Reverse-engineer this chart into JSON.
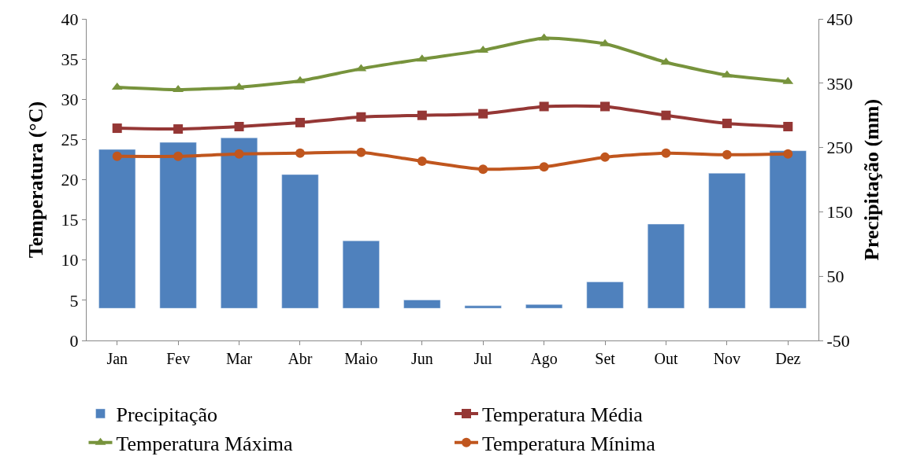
{
  "chart_data": {
    "type": "bar",
    "categories": [
      "Jan",
      "Fev",
      "Mar",
      "Abr",
      "Maio",
      "Jun",
      "Jul",
      "Ago",
      "Set",
      "Out",
      "Nov",
      "Dez"
    ],
    "ylabel": "Temperatura (°C)",
    "y2label": "Precipitação (mm)",
    "ylim": [
      0,
      40
    ],
    "yticks": [
      0,
      5,
      10,
      15,
      20,
      25,
      30,
      35,
      40
    ],
    "y2lim": [
      -50,
      450
    ],
    "y2ticks": [
      -50,
      50,
      150,
      250,
      350,
      450
    ],
    "grid": false,
    "legend": "bottom",
    "series": [
      {
        "name": "Precipitação",
        "axis": "y2",
        "color": "#4f81bd",
        "values": [
          247,
          258,
          265,
          208,
          105,
          13,
          4,
          6,
          41,
          131,
          210,
          245
        ]
      },
      {
        "name": "Temperatura Média",
        "type": "line",
        "color": "#953735",
        "marker": "square",
        "values": [
          26.4,
          26.3,
          26.6,
          27.1,
          27.8,
          28.0,
          28.2,
          29.1,
          29.1,
          28.0,
          27.0,
          26.6
        ]
      },
      {
        "name": "Temperatura Máxima",
        "type": "line",
        "color": "#77933c",
        "marker": "triangle",
        "values": [
          31.5,
          31.2,
          31.5,
          32.3,
          33.8,
          35.0,
          36.1,
          37.6,
          36.9,
          34.6,
          33.0,
          32.2
        ]
      },
      {
        "name": "Temperatura Mínima",
        "type": "line",
        "color": "#c0561e",
        "marker": "circle",
        "values": [
          22.9,
          22.9,
          23.2,
          23.3,
          23.4,
          22.3,
          21.3,
          21.6,
          22.8,
          23.3,
          23.1,
          23.2
        ]
      }
    ]
  }
}
